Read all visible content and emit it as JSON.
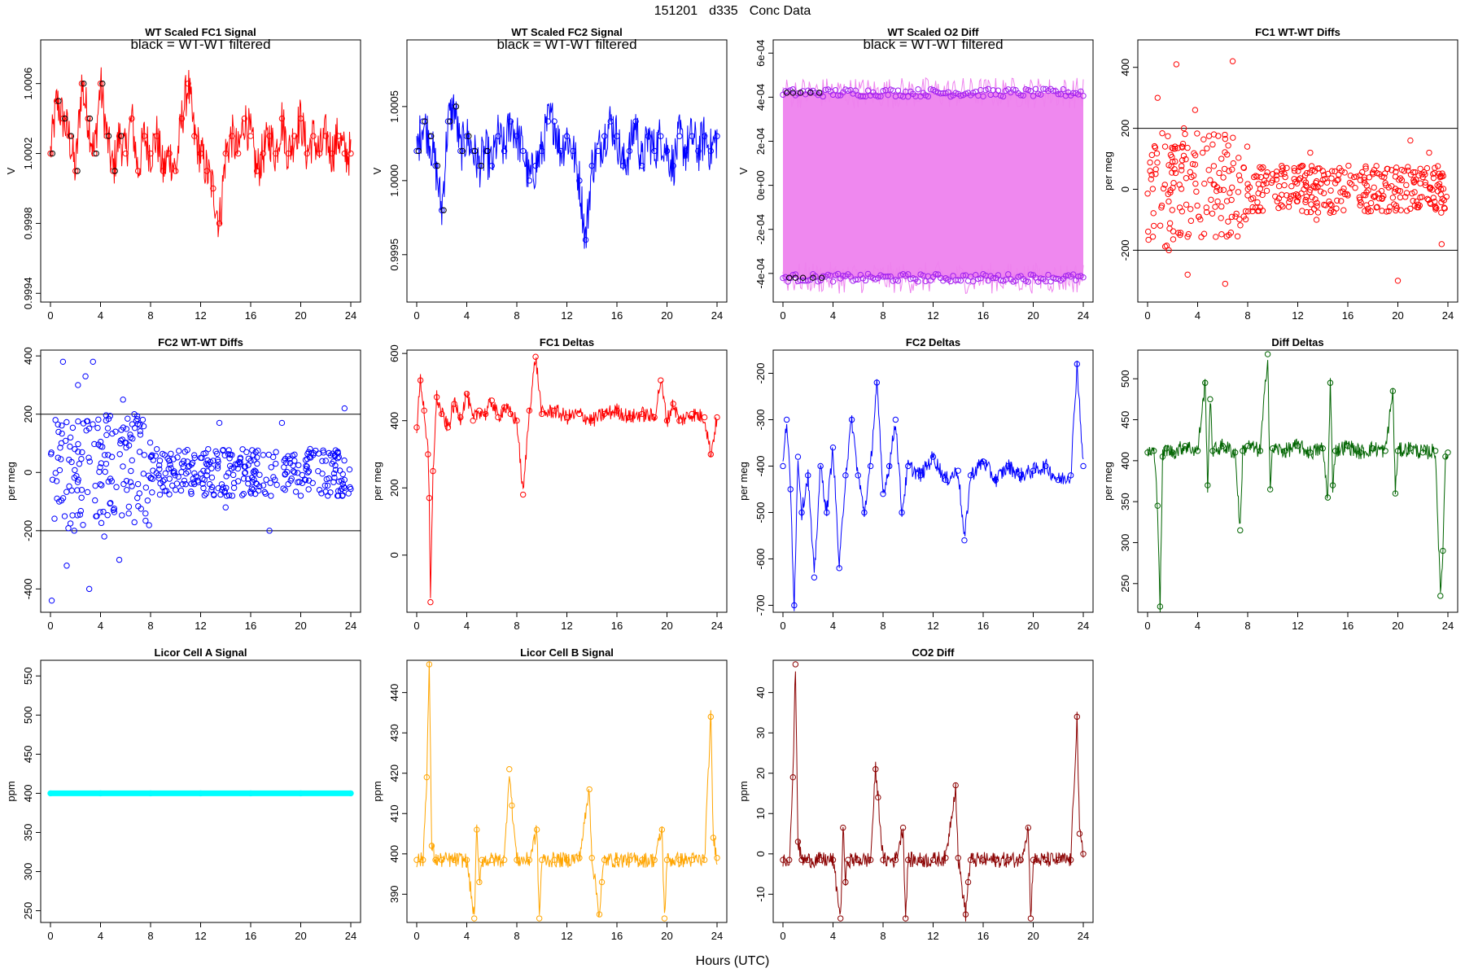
{
  "figure": {
    "date": "151201",
    "day": "d335",
    "name": "Conc Data",
    "xlabel": "Hours (UTC)"
  },
  "chart_data": [
    {
      "id": "p1",
      "type": "line",
      "title": "WT Scaled FC1 Signal",
      "ylabel": "V",
      "annotation": "black = WT-WT filtered",
      "color": "#ff0000",
      "xlim": [
        0,
        24
      ],
      "ylim": [
        0.99935,
        1.00085
      ],
      "xticks": [
        0,
        4,
        8,
        12,
        16,
        20,
        24
      ],
      "yticks": [
        0.9994,
        0.9998,
        1.0002,
        1.0006
      ],
      "ytick_labels": [
        "0.9994",
        "0.9998",
        "1.0002",
        "1.0006"
      ],
      "x": [
        0,
        0.5,
        1,
        1.5,
        2,
        2.5,
        3,
        3.5,
        4,
        4.5,
        5,
        5.5,
        6,
        6.5,
        7,
        7.5,
        8,
        8.5,
        9,
        9.5,
        10,
        10.5,
        11,
        11.5,
        12,
        12.5,
        13,
        13.5,
        14,
        14.5,
        15,
        15.5,
        16,
        16.5,
        17,
        17.5,
        18,
        18.5,
        19,
        19.5,
        20,
        20.5,
        21,
        21.5,
        22,
        22.5,
        23,
        23.5,
        24
      ],
      "y": [
        1.0002,
        1.0005,
        1.0004,
        1.0003,
        1.0001,
        1.0006,
        1.0004,
        1.0002,
        1.0006,
        1.0003,
        1.0001,
        1.0003,
        1.0002,
        1.0004,
        1.0001,
        1.0003,
        1.0002,
        1.0003,
        1.0001,
        1.0002,
        1.0001,
        1.0004,
        1.0006,
        1.0003,
        1.0002,
        1.0001,
        1.0,
        0.9998,
        1.0002,
        1.0003,
        1.0002,
        1.0004,
        1.0003,
        1.0001,
        1.0002,
        1.0003,
        1.0002,
        1.0004,
        1.0002,
        1.0003,
        1.0004,
        1.0002,
        1.0003,
        1.0002,
        1.0003,
        1.0002,
        1.0003,
        1.0002,
        1.0002
      ]
    },
    {
      "id": "p2",
      "type": "line",
      "title": "WT Scaled FC2 Signal",
      "ylabel": "V",
      "annotation": "black = WT-WT filtered",
      "color": "#0000ff",
      "xlim": [
        0,
        24
      ],
      "ylim": [
        0.99918,
        1.00095
      ],
      "xticks": [
        0,
        4,
        8,
        12,
        16,
        20,
        24
      ],
      "yticks": [
        0.9995,
        1.0,
        1.0005
      ],
      "ytick_labels": [
        "0.9995",
        "1.0000",
        "1.0005"
      ],
      "x": [
        0,
        0.5,
        1,
        1.5,
        2,
        2.5,
        3,
        3.5,
        4,
        4.5,
        5,
        5.5,
        6,
        6.5,
        7,
        7.5,
        8,
        8.5,
        9,
        9.5,
        10,
        10.5,
        11,
        11.5,
        12,
        12.5,
        13,
        13.5,
        14,
        14.5,
        15,
        15.5,
        16,
        16.5,
        17,
        17.5,
        18,
        18.5,
        19,
        19.5,
        20,
        20.5,
        21,
        21.5,
        22,
        22.5,
        23,
        23.5,
        24
      ],
      "y": [
        1.0002,
        1.0004,
        1.0003,
        1.0001,
        0.9998,
        1.0004,
        1.0005,
        1.0002,
        1.0003,
        1.0002,
        1.0001,
        1.0002,
        1.0001,
        1.0003,
        1.0002,
        1.0004,
        1.0003,
        1.0002,
        1.0,
        1.0001,
        1.0002,
        1.0004,
        1.0004,
        1.0002,
        1.0003,
        1.0002,
        1.0,
        0.9996,
        1.0001,
        1.0002,
        1.0003,
        1.0004,
        1.0003,
        1.0001,
        1.0002,
        1.0004,
        1.0001,
        1.0003,
        1.0002,
        1.0003,
        1.0002,
        1.0001,
        1.0003,
        1.0002,
        1.0003,
        1.0002,
        1.0003,
        1.0002,
        1.0003
      ]
    },
    {
      "id": "p3",
      "type": "band",
      "title": "WT Scaled O2 Diff",
      "ylabel": "V",
      "annotation": "black = WT-WT filtered",
      "color": "#ee82ee",
      "edge_color": "#a020f0",
      "xlim": [
        0,
        24
      ],
      "ylim": [
        -0.00053,
        0.00066
      ],
      "xticks": [
        0,
        4,
        8,
        12,
        16,
        20,
        24
      ],
      "yticks": [
        -0.0004,
        -0.0002,
        0,
        0.0002,
        0.0004,
        0.0006
      ],
      "ytick_labels": [
        "-4e-04",
        "-2e-04",
        "0e+00",
        "2e-04",
        "4e-04",
        "6e-04"
      ],
      "upper": 0.00042,
      "lower": -0.00042
    },
    {
      "id": "p4",
      "type": "scatter",
      "title": "FC1 WT-WT Diffs",
      "ylabel": "per meg",
      "color": "#ff0000",
      "xlim": [
        0,
        24
      ],
      "ylim": [
        -370,
        490
      ],
      "xticks": [
        0,
        4,
        8,
        12,
        16,
        20,
        24
      ],
      "yticks": [
        -200,
        0,
        200,
        400
      ],
      "ytick_labels": [
        "-200",
        "0",
        "200",
        "400"
      ],
      "hlines": [
        200,
        -200
      ],
      "x": [
        0.2,
        0.5,
        0.8,
        1.1,
        1.4,
        1.7,
        2.0,
        2.3,
        2.6,
        2.9,
        3.2,
        3.5,
        3.8,
        4.1,
        4.4,
        4.7,
        5.0,
        5.3,
        5.6,
        5.9,
        6.2,
        6.5,
        6.8,
        7.1,
        7.4,
        7.7,
        8.0,
        8.5,
        9.0,
        9.5,
        10.0,
        10.5,
        11.0,
        11.5,
        12.0,
        12.5,
        13.0,
        13.5,
        14.0,
        14.5,
        15.0,
        15.5,
        16.0,
        16.5,
        17.0,
        17.5,
        18.0,
        18.5,
        19.0,
        19.5,
        20.0,
        20.5,
        21.0,
        21.5,
        22.0,
        22.5,
        23.0,
        23.5
      ],
      "y": [
        60,
        -120,
        300,
        -60,
        140,
        -200,
        90,
        410,
        -150,
        200,
        -280,
        40,
        260,
        -90,
        120,
        -60,
        30,
        180,
        -40,
        100,
        -310,
        60,
        420,
        -80,
        30,
        70,
        -20,
        40,
        -60,
        20,
        50,
        -30,
        40,
        10,
        -20,
        30,
        120,
        -100,
        60,
        -40,
        20,
        60,
        -20,
        40,
        30,
        -10,
        50,
        -30,
        20,
        10,
        -300,
        60,
        160,
        -40,
        40,
        120,
        -60,
        -180
      ]
    },
    {
      "id": "p5",
      "type": "scatter",
      "title": "FC2 WT-WT Diffs",
      "ylabel": "per meg",
      "color": "#0000ff",
      "xlim": [
        0,
        24
      ],
      "ylim": [
        -480,
        420
      ],
      "xticks": [
        0,
        4,
        8,
        12,
        16,
        20,
        24
      ],
      "yticks": [
        -400,
        -200,
        0,
        200,
        400
      ],
      "ytick_labels": [
        "-400",
        "-200",
        "0",
        "200",
        "400"
      ],
      "hlines": [
        200,
        -200
      ],
      "x": [
        0.1,
        0.4,
        0.7,
        1.0,
        1.3,
        1.6,
        1.9,
        2.2,
        2.5,
        2.8,
        3.1,
        3.4,
        3.7,
        4.0,
        4.3,
        4.6,
        4.9,
        5.2,
        5.5,
        5.8,
        6.1,
        6.4,
        6.7,
        7.0,
        7.5,
        8.0,
        8.5,
        9.0,
        9.5,
        10.0,
        10.5,
        11.0,
        11.5,
        12.0,
        12.5,
        13.0,
        13.5,
        14.0,
        14.5,
        15.0,
        15.5,
        16.0,
        16.5,
        17.0,
        17.5,
        18.0,
        18.5,
        19.0,
        19.5,
        20.0,
        20.5,
        21.0,
        21.5,
        22.0,
        22.5,
        23.0,
        23.5,
        23.9
      ],
      "y": [
        -440,
        180,
        -100,
        380,
        -320,
        120,
        -200,
        300,
        -60,
        330,
        -400,
        380,
        -150,
        90,
        -220,
        60,
        -30,
        140,
        -300,
        250,
        -60,
        120,
        200,
        -40,
        60,
        -20,
        80,
        -30,
        40,
        -60,
        30,
        20,
        -40,
        50,
        -10,
        40,
        170,
        -120,
        60,
        -30,
        20,
        40,
        -40,
        60,
        -200,
        30,
        170,
        -40,
        40,
        -80,
        20,
        60,
        -60,
        40,
        30,
        -80,
        220,
        10
      ]
    },
    {
      "id": "p6",
      "type": "line",
      "title": "FC1 Deltas",
      "ylabel": "per meg",
      "color": "#ff0000",
      "xlim": [
        0,
        24
      ],
      "ylim": [
        -170,
        610
      ],
      "xticks": [
        0,
        4,
        8,
        12,
        16,
        20,
        24
      ],
      "yticks": [
        0,
        200,
        400,
        600
      ],
      "ytick_labels": [
        "0",
        "200",
        "400",
        "600"
      ],
      "x": [
        0,
        0.3,
        0.6,
        0.9,
        1.0,
        1.1,
        1.3,
        1.6,
        2.0,
        2.5,
        3.0,
        3.5,
        4.0,
        4.5,
        5.0,
        5.5,
        6.0,
        6.5,
        7.0,
        7.5,
        8.0,
        8.5,
        9.0,
        9.5,
        10.0,
        11.0,
        12.0,
        13.0,
        14.0,
        15.0,
        16.0,
        17.0,
        18.0,
        19.0,
        19.5,
        20.0,
        20.5,
        21.0,
        22.0,
        23.0,
        23.5,
        24.0
      ],
      "y": [
        380,
        520,
        430,
        300,
        170,
        -140,
        250,
        470,
        420,
        380,
        450,
        410,
        480,
        400,
        430,
        420,
        460,
        410,
        440,
        420,
        400,
        180,
        430,
        590,
        420,
        430,
        410,
        420,
        400,
        420,
        430,
        410,
        420,
        410,
        520,
        400,
        450,
        400,
        420,
        410,
        300,
        410
      ]
    },
    {
      "id": "p7",
      "type": "line",
      "title": "FC2 Deltas",
      "ylabel": "per meg",
      "color": "#0000ff",
      "xlim": [
        0,
        24
      ],
      "ylim": [
        -715,
        -150
      ],
      "xticks": [
        0,
        4,
        8,
        12,
        16,
        20,
        24
      ],
      "yticks": [
        -700,
        -600,
        -500,
        -400,
        -300,
        -200
      ],
      "ytick_labels": [
        "-700",
        "-600",
        "-500",
        "-400",
        "-300",
        "-200"
      ],
      "x": [
        0,
        0.3,
        0.6,
        0.9,
        1.2,
        1.5,
        2.0,
        2.5,
        3.0,
        3.5,
        4.0,
        4.5,
        5.0,
        5.5,
        6.0,
        6.5,
        7.0,
        7.5,
        8.0,
        8.5,
        9.0,
        9.5,
        10.0,
        11.0,
        12.0,
        13.0,
        14.0,
        14.5,
        15.0,
        16.0,
        17.0,
        18.0,
        19.0,
        20.0,
        21.0,
        22.0,
        23.0,
        23.5,
        24.0
      ],
      "y": [
        -400,
        -300,
        -450,
        -700,
        -380,
        -500,
        -420,
        -640,
        -400,
        -500,
        -360,
        -620,
        -420,
        -300,
        -420,
        -500,
        -400,
        -220,
        -460,
        -400,
        -300,
        -500,
        -400,
        -420,
        -380,
        -430,
        -410,
        -560,
        -420,
        -390,
        -430,
        -400,
        -420,
        -410,
        -400,
        -430,
        -420,
        -180,
        -400
      ]
    },
    {
      "id": "p8",
      "type": "line",
      "title": "Diff Deltas",
      "ylabel": "per meg",
      "color": "#006400",
      "xlim": [
        0,
        24
      ],
      "ylim": [
        215,
        535
      ],
      "xticks": [
        0,
        4,
        8,
        12,
        16,
        20,
        24
      ],
      "yticks": [
        250,
        300,
        350,
        400,
        450,
        500
      ],
      "ytick_labels": [
        "250",
        "300",
        "350",
        "400",
        "450",
        "500"
      ],
      "x": [
        0,
        0.5,
        0.8,
        1.0,
        1.2,
        1.5,
        2.0,
        3.0,
        4.0,
        4.6,
        4.8,
        5.0,
        5.2,
        6.0,
        7.0,
        7.4,
        7.6,
        8.0,
        9.0,
        9.6,
        9.8,
        10.0,
        11.0,
        12.0,
        13.0,
        14.0,
        14.4,
        14.6,
        14.8,
        15.0,
        16.0,
        17.0,
        18.0,
        19.0,
        19.6,
        19.8,
        20.0,
        21.0,
        22.0,
        23.0,
        23.4,
        23.6,
        23.8,
        24.0
      ],
      "y": [
        410,
        412,
        345,
        222,
        405,
        415,
        410,
        418,
        412,
        495,
        370,
        475,
        412,
        418,
        410,
        315,
        412,
        418,
        412,
        530,
        365,
        415,
        412,
        418,
        410,
        415,
        355,
        495,
        370,
        412,
        418,
        410,
        415,
        412,
        485,
        360,
        412,
        415,
        410,
        412,
        235,
        290,
        405,
        410
      ]
    },
    {
      "id": "p9",
      "type": "line",
      "title": "Licor Cell A Signal",
      "ylabel": "ppm",
      "color": "#00ffff",
      "xlim": [
        0,
        24
      ],
      "ylim": [
        235,
        570
      ],
      "xticks": [
        0,
        4,
        8,
        12,
        16,
        20,
        24
      ],
      "yticks": [
        250,
        300,
        350,
        400,
        450,
        500,
        550
      ],
      "ytick_labels": [
        "250",
        "300",
        "350",
        "400",
        "450",
        "500",
        "550"
      ],
      "x": [
        0,
        4,
        8,
        12,
        16,
        20,
        24
      ],
      "y": [
        400,
        400,
        400,
        400,
        400,
        400,
        400
      ]
    },
    {
      "id": "p10",
      "type": "line",
      "title": "Licor Cell B Signal",
      "ylabel": "ppm",
      "color": "#ffa500",
      "xlim": [
        0,
        24
      ],
      "ylim": [
        383,
        448
      ],
      "xticks": [
        0,
        4,
        8,
        12,
        16,
        20,
        24
      ],
      "yticks": [
        390,
        400,
        410,
        420,
        430,
        440
      ],
      "ytick_labels": [
        "390",
        "400",
        "410",
        "420",
        "430",
        "440"
      ],
      "x": [
        0,
        0.5,
        0.8,
        1.0,
        1.2,
        1.5,
        2.0,
        3.0,
        4.0,
        4.6,
        4.8,
        5.0,
        5.2,
        6.0,
        7.0,
        7.4,
        7.6,
        8.0,
        9.0,
        9.6,
        9.8,
        10.0,
        11.0,
        12.0,
        13.0,
        13.8,
        14.0,
        14.6,
        14.8,
        15.0,
        16.0,
        17.0,
        18.0,
        19.0,
        19.6,
        19.8,
        20.0,
        21.0,
        22.0,
        23.0,
        23.5,
        23.7,
        24.0
      ],
      "y": [
        398.5,
        398.5,
        419,
        447,
        402,
        398.5,
        398.5,
        398.5,
        398.5,
        384,
        406,
        393,
        398.5,
        398.5,
        398.5,
        421,
        412,
        398.5,
        398.5,
        406,
        384,
        398.5,
        398.5,
        398.5,
        399,
        416,
        399,
        385,
        393,
        398.5,
        398.5,
        398.5,
        398.5,
        398.5,
        406,
        384,
        398.5,
        398.5,
        398.5,
        398.5,
        434,
        404,
        399
      ]
    },
    {
      "id": "p11",
      "type": "line",
      "title": "CO2 Diff",
      "ylabel": "ppm",
      "color": "#8b0000",
      "xlim": [
        0,
        24
      ],
      "ylim": [
        -17,
        48
      ],
      "xticks": [
        0,
        4,
        8,
        12,
        16,
        20,
        24
      ],
      "yticks": [
        -10,
        0,
        10,
        20,
        30,
        40
      ],
      "ytick_labels": [
        "-10",
        "0",
        "10",
        "20",
        "30",
        "40"
      ],
      "x": [
        0,
        0.5,
        0.8,
        1.0,
        1.2,
        1.5,
        2.0,
        3.0,
        4.0,
        4.6,
        4.8,
        5.0,
        5.2,
        6.0,
        7.0,
        7.4,
        7.6,
        8.0,
        9.0,
        9.6,
        9.8,
        10.0,
        11.0,
        12.0,
        13.0,
        13.8,
        14.0,
        14.6,
        14.8,
        15.0,
        16.0,
        17.0,
        18.0,
        19.0,
        19.6,
        19.8,
        20.0,
        21.0,
        22.0,
        23.0,
        23.5,
        23.7,
        24.0
      ],
      "y": [
        -1.5,
        -1.5,
        19,
        47,
        3,
        -1.5,
        -1.5,
        -1.5,
        -1.5,
        -16,
        6.5,
        -7,
        -1.5,
        -1.5,
        -1.5,
        21,
        14,
        -1.5,
        -1.5,
        6.5,
        -16,
        -1.5,
        -1.5,
        -1.5,
        -1,
        17,
        -1,
        -15,
        -7,
        -1.5,
        -1.5,
        -1.5,
        -1.5,
        -1.5,
        6.5,
        -16,
        -1.5,
        -1.5,
        -1.5,
        -1.5,
        34,
        5,
        0
      ]
    }
  ]
}
